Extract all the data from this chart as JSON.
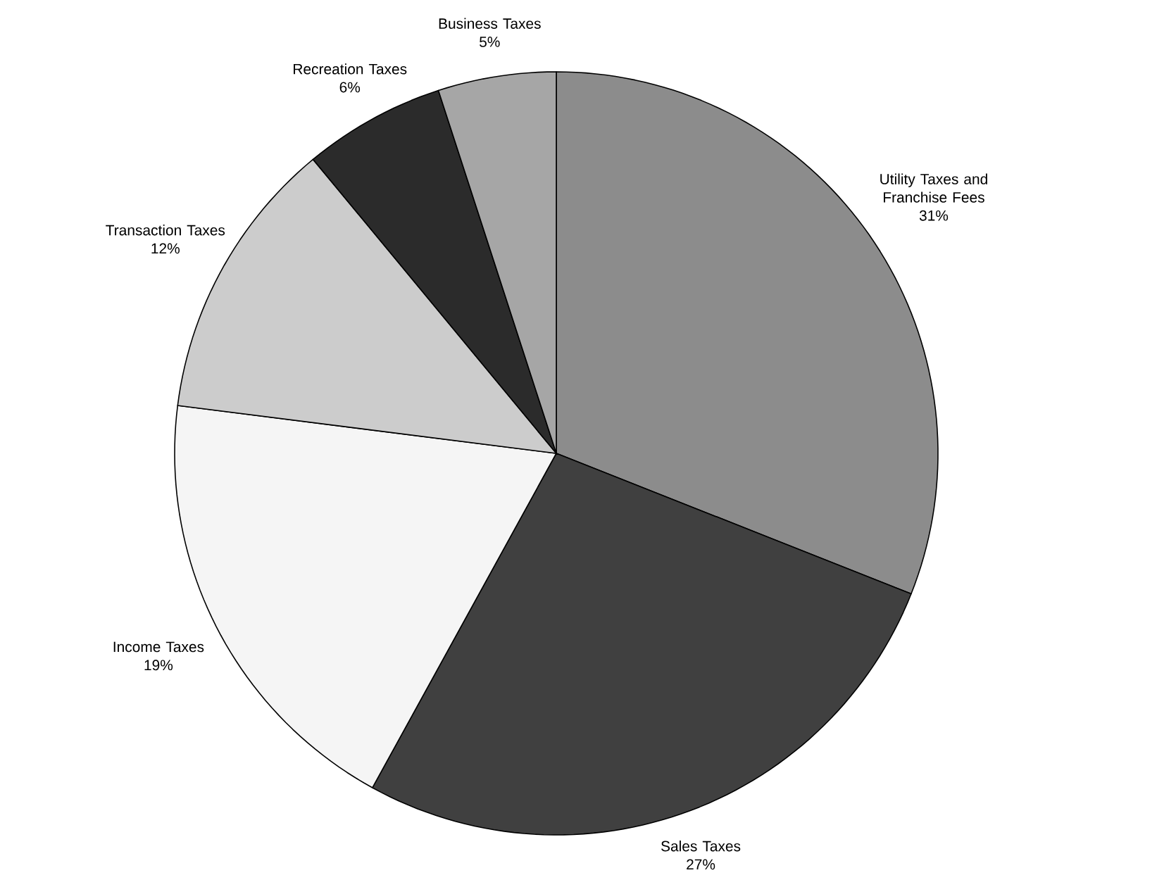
{
  "chart_data": {
    "type": "pie",
    "categories": [
      "Utility Taxes and Franchise Fees",
      "Sales Taxes",
      "Income Taxes",
      "Transaction Taxes",
      "Recreation Taxes",
      "Business Taxes"
    ],
    "values": [
      31,
      27,
      19,
      12,
      6,
      5
    ],
    "value_labels": [
      "31%",
      "27%",
      "19%",
      "12%",
      "6%",
      "5%"
    ],
    "colors": [
      "#8c8c8c",
      "#404040",
      "#f5f5f5",
      "#cccccc",
      "#2b2b2b",
      "#a6a6a6"
    ]
  }
}
